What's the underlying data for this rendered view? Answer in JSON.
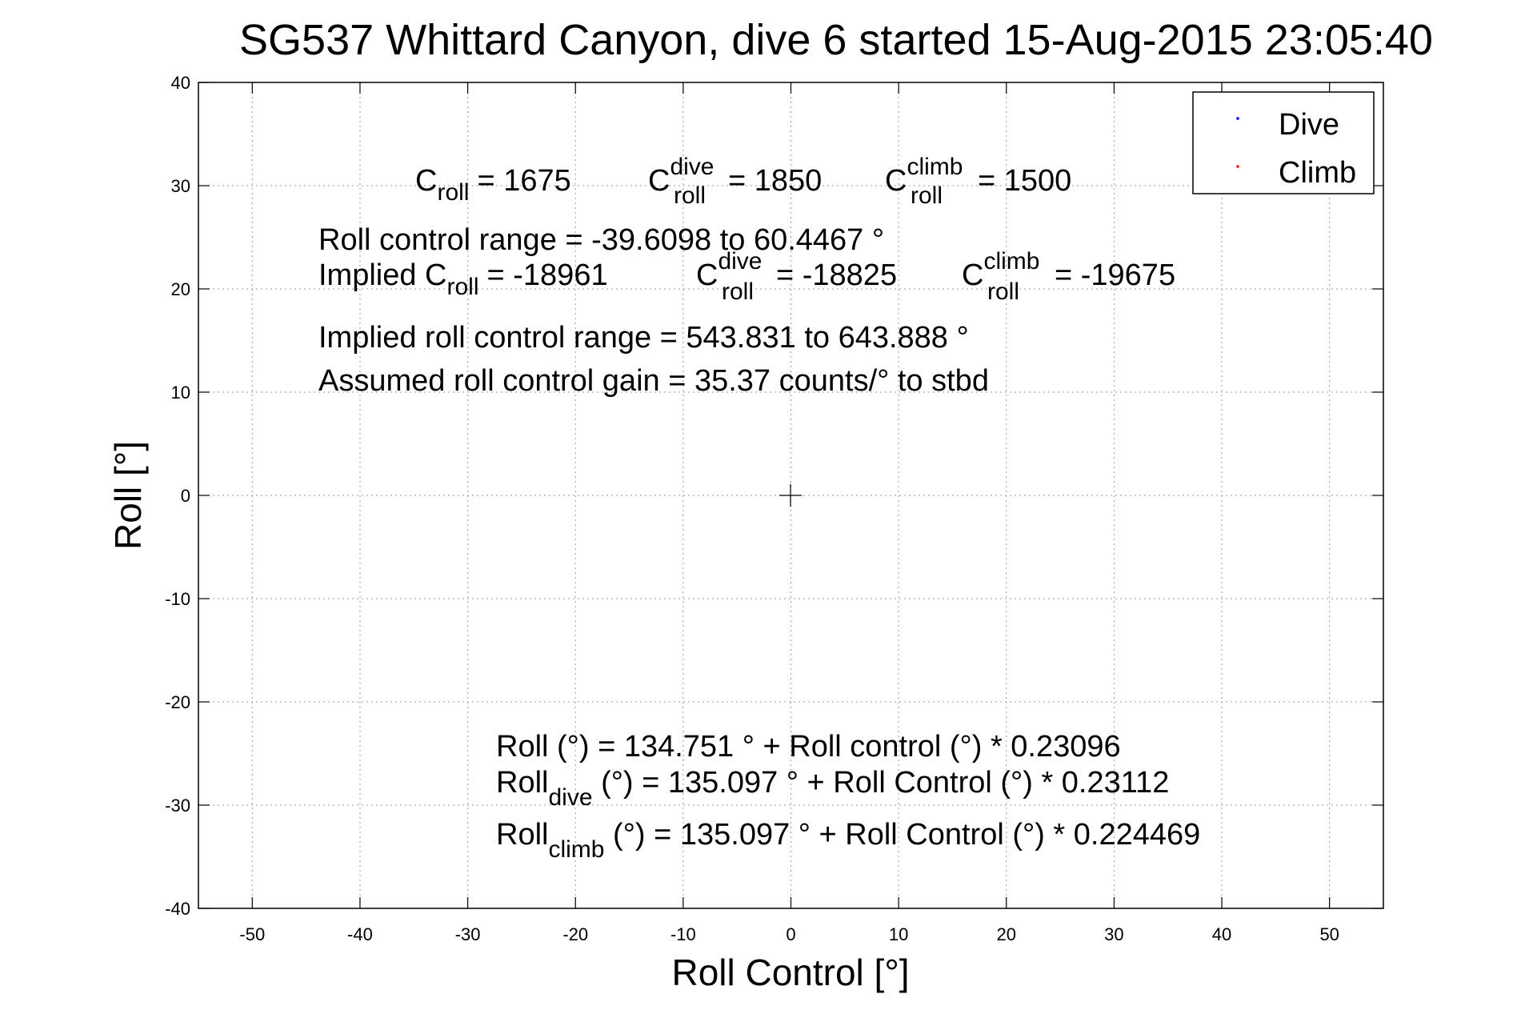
{
  "chart_data": {
    "type": "scatter",
    "title": "SG537 Whittard Canyon, dive 6 started 15-Aug-2015 23:05:40",
    "xlabel": "Roll Control [°]",
    "ylabel": "Roll [°]",
    "xlim": [
      -55,
      55
    ],
    "ylim": [
      -40,
      40
    ],
    "xticks": [
      -50,
      -40,
      -30,
      -20,
      -10,
      0,
      10,
      20,
      30,
      40,
      50
    ],
    "yticks": [
      -40,
      -30,
      -20,
      -10,
      0,
      10,
      20,
      30,
      40
    ],
    "grid": true,
    "legend_position": "top-right",
    "series": [
      {
        "name": "Dive",
        "color": "#0000ff",
        "marker": "point",
        "x": [],
        "y": []
      },
      {
        "name": "Climb",
        "color": "#ff0000",
        "marker": "point",
        "x": [],
        "y": []
      }
    ],
    "annotations": {
      "c_roll_line": {
        "c": "C",
        "roll": "roll",
        "dive": "dive",
        "climb": "climb",
        "val_all": "= 1675",
        "val_dive": "= 1850",
        "val_climb": "= 1500"
      },
      "roll_control_range": "Roll control range = -39.6098 to 60.4467 °",
      "implied_line": {
        "prefix": "Implied C",
        "roll": "roll",
        "dive": "dive",
        "climb": "climb",
        "c": "C",
        "val_all": "= -18961",
        "val_dive": "= -18825",
        "val_climb": "= -19675"
      },
      "implied_range": "Implied roll control range = 543.831 to 643.888 °",
      "gain": "Assumed roll control gain = 35.37 counts/° to stbd",
      "fit_all": "Roll (°) = 134.751 ° + Roll control (°) * 0.23096",
      "fit_dive": {
        "prefix": "Roll",
        "sub": "dive",
        "rest": " (°) = 135.097 ° + Roll Control (°) * 0.23112"
      },
      "fit_climb": {
        "prefix": "Roll",
        "sub": "climb",
        "rest": " (°) = 135.097 ° + Roll Control (°) * 0.224469"
      }
    }
  }
}
